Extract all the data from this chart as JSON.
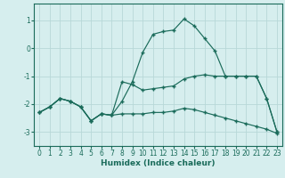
{
  "xlabel": "Humidex (Indice chaleur)",
  "bg_color": "#d6eeee",
  "line_color": "#1a6b5a",
  "grid_color": "#b8d8d8",
  "xlim": [
    -0.5,
    23.5
  ],
  "ylim": [
    -3.5,
    1.6
  ],
  "yticks": [
    -3,
    -2,
    -1,
    0,
    1
  ],
  "xticks": [
    0,
    1,
    2,
    3,
    4,
    5,
    6,
    7,
    8,
    9,
    10,
    11,
    12,
    13,
    14,
    15,
    16,
    17,
    18,
    19,
    20,
    21,
    22,
    23
  ],
  "line1_x": [
    0,
    1,
    2,
    3,
    4,
    5,
    6,
    7,
    8,
    9,
    10,
    11,
    12,
    13,
    14,
    15,
    16,
    17,
    18,
    19,
    20,
    21,
    22,
    23
  ],
  "line1_y": [
    -2.3,
    -2.1,
    -1.8,
    -1.9,
    -2.1,
    -2.6,
    -2.35,
    -2.4,
    -1.2,
    -1.3,
    -1.5,
    -1.45,
    -1.4,
    -1.35,
    -1.1,
    -1.0,
    -0.95,
    -1.0,
    -1.0,
    -1.0,
    -1.0,
    -1.0,
    -1.8,
    -3.0
  ],
  "line2_x": [
    0,
    1,
    2,
    3,
    4,
    5,
    6,
    7,
    8,
    9,
    10,
    11,
    12,
    13,
    14,
    15,
    16,
    17,
    18,
    19,
    20,
    21,
    22,
    23
  ],
  "line2_y": [
    -2.3,
    -2.1,
    -1.8,
    -1.9,
    -2.1,
    -2.6,
    -2.35,
    -2.4,
    -1.9,
    -1.2,
    -0.15,
    0.5,
    0.6,
    0.65,
    1.05,
    0.8,
    0.35,
    -0.1,
    -1.0,
    -1.0,
    -1.0,
    -1.0,
    -1.8,
    -3.0
  ],
  "line3_x": [
    0,
    1,
    2,
    3,
    4,
    5,
    6,
    7,
    8,
    9,
    10,
    11,
    12,
    13,
    14,
    15,
    16,
    17,
    18,
    19,
    20,
    21,
    22,
    23
  ],
  "line3_y": [
    -2.3,
    -2.1,
    -1.8,
    -1.9,
    -2.1,
    -2.6,
    -2.35,
    -2.4,
    -2.35,
    -2.35,
    -2.35,
    -2.3,
    -2.3,
    -2.25,
    -2.15,
    -2.2,
    -2.3,
    -2.4,
    -2.5,
    -2.6,
    -2.7,
    -2.8,
    -2.9,
    -3.05
  ]
}
